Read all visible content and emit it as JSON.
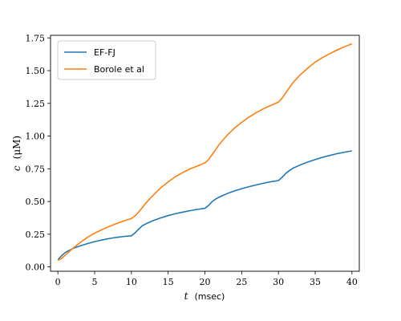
{
  "chart_data": {
    "type": "line",
    "title": "",
    "xlabel_var": "t",
    "xlabel_unit": "(msec)",
    "ylabel_var": "c",
    "ylabel_unit": "(μM)",
    "xlim": [
      -1,
      41
    ],
    "ylim": [
      -0.033,
      1.77
    ],
    "xticks": [
      0,
      5,
      10,
      15,
      20,
      25,
      30,
      35,
      40
    ],
    "xtick_labels": [
      "0",
      "5",
      "10",
      "15",
      "20",
      "25",
      "30",
      "35",
      "40"
    ],
    "yticks": [
      0.0,
      0.25,
      0.5,
      0.75,
      1.0,
      1.25,
      1.5,
      1.75
    ],
    "ytick_labels": [
      "0.00",
      "0.25",
      "0.50",
      "0.75",
      "1.00",
      "1.25",
      "1.50",
      "1.75"
    ],
    "grid": false,
    "legend_position": "top-left",
    "series": [
      {
        "name": "EF-FJ",
        "color": "#1f77b4",
        "x": [
          0,
          0.5,
          1,
          2,
          3,
          4,
          5,
          6,
          7,
          8,
          9,
          10,
          10.5,
          11,
          11.5,
          12,
          13,
          14,
          15,
          16,
          17,
          18,
          19,
          20,
          20.5,
          21,
          21.5,
          22,
          23,
          24,
          25,
          26,
          27,
          28,
          29,
          30,
          30.5,
          31,
          31.5,
          32,
          33,
          34,
          35,
          36,
          37,
          38,
          39,
          40
        ],
        "y": [
          0.055,
          0.085,
          0.11,
          0.14,
          0.16,
          0.178,
          0.193,
          0.206,
          0.217,
          0.226,
          0.233,
          0.238,
          0.26,
          0.29,
          0.315,
          0.33,
          0.355,
          0.375,
          0.392,
          0.407,
          0.419,
          0.43,
          0.44,
          0.448,
          0.47,
          0.5,
          0.52,
          0.535,
          0.56,
          0.58,
          0.598,
          0.613,
          0.627,
          0.64,
          0.651,
          0.66,
          0.685,
          0.715,
          0.737,
          0.755,
          0.78,
          0.802,
          0.82,
          0.838,
          0.852,
          0.866,
          0.877,
          0.887
        ]
      },
      {
        "name": "Borole et al",
        "color": "#ff7f0e",
        "x": [
          0,
          0.5,
          1,
          2,
          3,
          4,
          5,
          6,
          7,
          8,
          9,
          10,
          10.5,
          11,
          12,
          13,
          14,
          15,
          16,
          17,
          18,
          19,
          20,
          20.5,
          21,
          22,
          23,
          24,
          25,
          26,
          27,
          28,
          29,
          30,
          30.5,
          31,
          32,
          33,
          34,
          35,
          36,
          37,
          38,
          39,
          40
        ],
        "y": [
          0.05,
          0.065,
          0.09,
          0.14,
          0.185,
          0.225,
          0.258,
          0.285,
          0.31,
          0.332,
          0.352,
          0.37,
          0.39,
          0.42,
          0.49,
          0.55,
          0.605,
          0.65,
          0.69,
          0.722,
          0.75,
          0.772,
          0.795,
          0.82,
          0.86,
          0.94,
          1.005,
          1.06,
          1.105,
          1.145,
          1.18,
          1.21,
          1.235,
          1.26,
          1.29,
          1.33,
          1.41,
          1.47,
          1.52,
          1.565,
          1.6,
          1.63,
          1.658,
          1.683,
          1.705
        ]
      }
    ]
  }
}
